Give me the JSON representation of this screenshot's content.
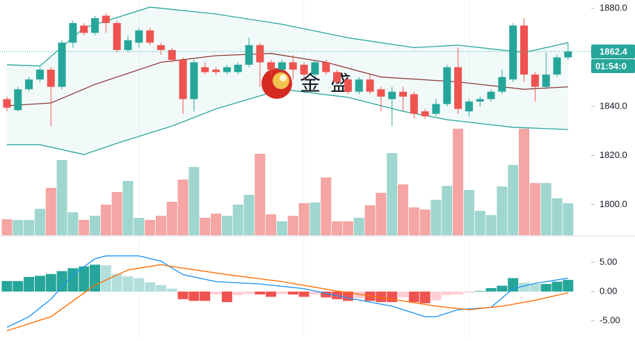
{
  "chart_data": [
    {
      "type": "candlestick",
      "x": [
        0,
        1,
        2,
        3,
        4,
        5,
        6,
        7,
        8,
        9,
        10,
        11,
        12,
        13,
        14,
        15,
        16,
        17,
        18,
        19,
        20,
        21,
        22,
        23,
        24,
        25,
        26,
        27,
        28,
        29,
        30,
        31,
        32,
        33,
        34,
        35,
        36,
        37,
        38,
        39,
        40,
        41,
        42,
        43,
        44,
        45,
        46,
        47,
        48,
        49,
        50,
        51
      ],
      "open": [
        1843,
        1838.5,
        1847,
        1851,
        1855,
        1848,
        1866,
        1873,
        1870,
        1877,
        1874,
        1863,
        1866,
        1871,
        1865,
        1863,
        1859,
        1843,
        1856,
        1855,
        1854,
        1854,
        1857,
        1865,
        1858,
        1855,
        1858,
        1857,
        1853,
        1858,
        1854,
        1851,
        1846,
        1851,
        1847,
        1843,
        1846,
        1845,
        1838,
        1837,
        1841,
        1856,
        1838,
        1842,
        1843,
        1846,
        1851,
        1873,
        1853,
        1848,
        1853,
        1860
      ],
      "high": [
        1844,
        1848,
        1852,
        1856,
        1856,
        1867,
        1875,
        1874,
        1877,
        1878,
        1875,
        1869,
        1872,
        1872,
        1866,
        1864,
        1860,
        1859,
        1858,
        1856,
        1857,
        1858,
        1868,
        1866,
        1859,
        1859,
        1861,
        1858,
        1859,
        1859,
        1855,
        1852,
        1852,
        1853,
        1848,
        1848,
        1848,
        1846,
        1839,
        1843,
        1857,
        1864,
        1843,
        1844,
        1847,
        1855,
        1874,
        1876,
        1854,
        1862,
        1861,
        1866
      ],
      "low": [
        1838,
        1838,
        1846,
        1850,
        1832,
        1847,
        1864,
        1869,
        1869,
        1870,
        1862,
        1862,
        1864,
        1865,
        1861,
        1858,
        1837,
        1838,
        1853,
        1853,
        1853,
        1853,
        1856,
        1848,
        1853,
        1854,
        1851,
        1851,
        1852,
        1853,
        1849,
        1845,
        1845,
        1845,
        1838,
        1832,
        1838,
        1835,
        1835,
        1836,
        1840,
        1837,
        1836,
        1840,
        1842,
        1845,
        1850,
        1850,
        1842,
        1847,
        1852,
        1859
      ],
      "close": [
        1839.5,
        1847,
        1851,
        1855,
        1848,
        1866,
        1874,
        1870,
        1876,
        1874,
        1863,
        1867,
        1871,
        1866,
        1863,
        1859,
        1843,
        1858,
        1854,
        1854,
        1856,
        1857,
        1865,
        1858,
        1855,
        1858,
        1855,
        1853,
        1858,
        1854,
        1850,
        1846,
        1851,
        1846,
        1844,
        1846,
        1844,
        1837,
        1836,
        1841,
        1856,
        1839,
        1842,
        1843,
        1846,
        1852,
        1873,
        1853,
        1848,
        1853,
        1860,
        1862.4
      ],
      "volume": [
        23,
        22,
        22,
        38,
        68,
        108,
        33,
        22,
        28,
        44,
        62,
        78,
        25,
        22,
        28,
        48,
        80,
        98,
        25,
        31,
        28,
        44,
        58,
        117,
        30,
        20,
        28,
        46,
        47,
        83,
        20,
        20,
        25,
        43,
        61,
        118,
        73,
        40,
        37,
        51,
        71,
        153,
        65,
        35,
        29,
        70,
        101,
        153,
        75,
        75,
        53,
        46
      ],
      "volume_ylim": [
        0,
        160
      ],
      "up_color": "#26a69a",
      "down_color": "#ef5350",
      "up_volume_color": "#9fd6cf",
      "down_volume_color": "#f5a5a3",
      "bands": [
        {
          "color": "#26a69a",
          "x": [
            0,
            3,
            7,
            13,
            19,
            25,
            31,
            37,
            41,
            47,
            51
          ],
          "values": [
            1857,
            1856.5,
            1872,
            1880.5,
            1877.7,
            1873.5,
            1868,
            1864,
            1865,
            1862,
            1866
          ]
        },
        {
          "color": "#8d3a3a",
          "x": [
            0,
            4,
            8,
            14,
            19,
            24,
            29,
            34,
            41,
            47,
            51
          ],
          "values": [
            1840.3,
            1841.4,
            1849,
            1858,
            1860.7,
            1861.6,
            1858,
            1852,
            1850,
            1847,
            1848
          ]
        },
        {
          "color": "#26a69a",
          "x": [
            0,
            3,
            7,
            10,
            15,
            19,
            25,
            31,
            36,
            40,
            46,
            51
          ],
          "values": [
            1824.4,
            1824.4,
            1820.4,
            1825,
            1832,
            1839,
            1847,
            1843.7,
            1838,
            1834.6,
            1831.5,
            1830.6
          ]
        }
      ],
      "band_fill": "rgba(38,166,154,0.06)",
      "xlim": [
        -0.63,
        53.1
      ],
      "ylim": [
        1787.5,
        1883.4
      ],
      "yticks": [
        {
          "value": 1880,
          "label": "1880.0"
        },
        {
          "value": 1840,
          "label": "1840.0"
        },
        {
          "value": 1820,
          "label": "1820.0"
        },
        {
          "value": 1800,
          "label": "1800.0"
        }
      ],
      "last_price": 1862.4,
      "countdown": "01:54:0",
      "watermark": [
        "金",
        "盛"
      ]
    },
    {
      "type": "macd",
      "histogram": [
        1.8,
        1.8,
        2.5,
        2.7,
        3.0,
        3.5,
        4.0,
        4.3,
        4.6,
        4.5,
        3.0,
        2.6,
        2.3,
        1.6,
        1.1,
        0.5,
        -1.3,
        -1.6,
        -1.6,
        -0.5,
        -1.8,
        -0.6,
        -0.4,
        -0.5,
        -0.9,
        -0.4,
        -0.5,
        -0.9,
        -0.5,
        -1.0,
        -1.3,
        -1.6,
        -1.1,
        -1.6,
        -1.8,
        -1.8,
        -1.0,
        -1.8,
        -2.0,
        -1.5,
        -0.6,
        -0.5,
        -0.2,
        0.1,
        0.6,
        1.0,
        2.3,
        1.5,
        1.3,
        1.3,
        1.7,
        2.0
      ],
      "hist_colors": [
        "#26a69a",
        "#b2dfdb",
        "#ef5350",
        "#ffcdd2"
      ],
      "series": [
        {
          "color": "#2196f3",
          "x": [
            0,
            2,
            4,
            6,
            8,
            9,
            12,
            14,
            16,
            19,
            23,
            27,
            31,
            35,
            38,
            39,
            41,
            44,
            46,
            48,
            51
          ],
          "values": [
            -6.1,
            -4.3,
            -1.3,
            2.9,
            5.6,
            6.1,
            6.1,
            5.2,
            2.9,
            1.7,
            1.3,
            0.5,
            -1.1,
            -2.5,
            -4.3,
            -4.3,
            -3.1,
            -2.7,
            0.5,
            1.4,
            2.3
          ]
        },
        {
          "color": "#ff6d00",
          "x": [
            0,
            4,
            8,
            11,
            14,
            16,
            20,
            25,
            30,
            35,
            39,
            42,
            45,
            48,
            51
          ],
          "values": [
            -6.7,
            -4.3,
            1.1,
            3.7,
            4.6,
            4.0,
            2.9,
            1.7,
            0.1,
            -1.3,
            -2.5,
            -3.1,
            -2.5,
            -1.5,
            -0.2
          ]
        }
      ],
      "xlim": [
        -0.63,
        53.1
      ],
      "ylim": [
        -7.86,
        9.4
      ],
      "yticks": [
        {
          "value": 5,
          "label": "5.00"
        },
        {
          "value": 0,
          "label": "0.00"
        },
        {
          "value": -5,
          "label": "-5.00"
        }
      ]
    }
  ]
}
